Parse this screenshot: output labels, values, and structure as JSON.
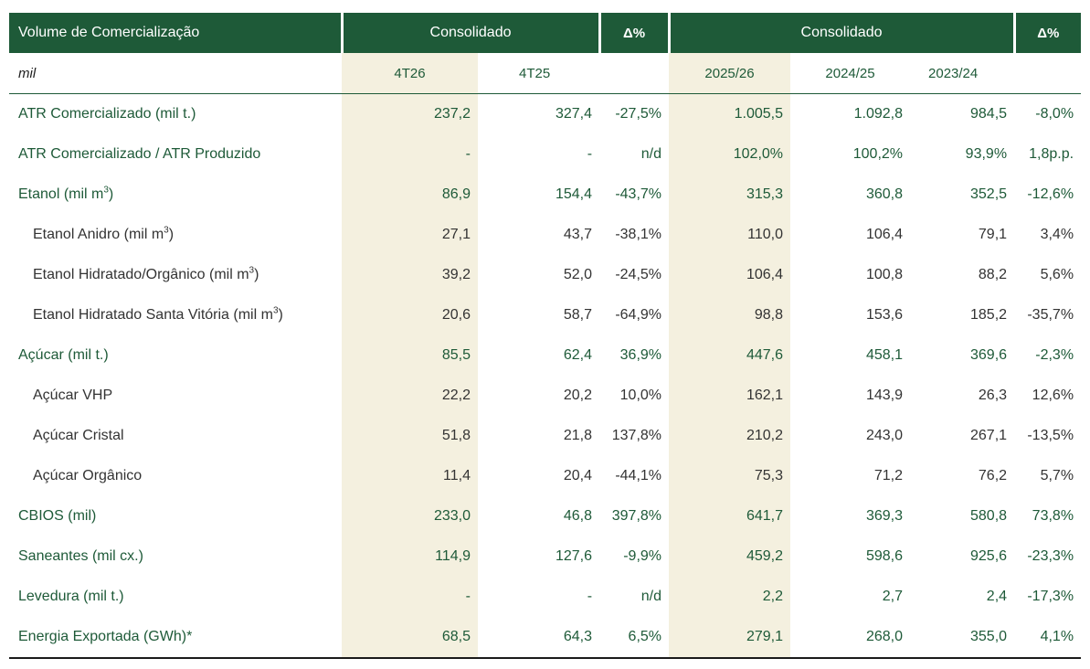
{
  "header": {
    "title": "Volume de Comercialização",
    "group_quarter": "Consolidado",
    "delta_quarter": "Δ%",
    "group_harvest": "Consolidado",
    "delta_harvest": "Δ%"
  },
  "subheader": {
    "unit": "mil",
    "q_current": "4T26",
    "q_previous": "4T25",
    "h_current": "2025/26",
    "h_previous": "2024/25",
    "h_older": "2023/24"
  },
  "rows": [
    {
      "label": "ATR Comercializado (mil t.)",
      "sup": "",
      "suffix": "",
      "type": "main",
      "values": [
        "237,2",
        "327,4",
        "-27,5%",
        "1.005,5",
        "1.092,8",
        "984,5",
        "-8,0%"
      ]
    },
    {
      "label": "ATR Comercializado / ATR Produzido",
      "sup": "",
      "suffix": "",
      "type": "main",
      "values": [
        "-",
        "-",
        "n/d",
        "102,0%",
        "100,2%",
        "93,9%",
        "1,8p.p."
      ]
    },
    {
      "label": "Etanol (mil m",
      "sup": "3",
      "suffix": ")",
      "type": "main",
      "values": [
        "86,9",
        "154,4",
        "-43,7%",
        "315,3",
        "360,8",
        "352,5",
        "-12,6%"
      ]
    },
    {
      "label": "Etanol Anidro (mil m",
      "sup": "3",
      "suffix": ")",
      "type": "sub",
      "values": [
        "27,1",
        "43,7",
        "-38,1%",
        "110,0",
        "106,4",
        "79,1",
        "3,4%"
      ]
    },
    {
      "label": "Etanol Hidratado/Orgânico (mil m",
      "sup": "3",
      "suffix": ")",
      "type": "sub",
      "values": [
        "39,2",
        "52,0",
        "-24,5%",
        "106,4",
        "100,8",
        "88,2",
        "5,6%"
      ]
    },
    {
      "label": "Etanol Hidratado Santa Vitória (mil m",
      "sup": "3",
      "suffix": ")",
      "type": "sub",
      "values": [
        "20,6",
        "58,7",
        "-64,9%",
        "98,8",
        "153,6",
        "185,2",
        "-35,7%"
      ]
    },
    {
      "label": "Açúcar (mil t.)",
      "sup": "",
      "suffix": "",
      "type": "main",
      "values": [
        "85,5",
        "62,4",
        "36,9%",
        "447,6",
        "458,1",
        "369,6",
        "-2,3%"
      ]
    },
    {
      "label": "Açúcar VHP",
      "sup": "",
      "suffix": "",
      "type": "sub",
      "values": [
        "22,2",
        "20,2",
        "10,0%",
        "162,1",
        "143,9",
        "26,3",
        "12,6%"
      ]
    },
    {
      "label": "Açúcar Cristal",
      "sup": "",
      "suffix": "",
      "type": "sub",
      "values": [
        "51,8",
        "21,8",
        "137,8%",
        "210,2",
        "243,0",
        "267,1",
        "-13,5%"
      ]
    },
    {
      "label": "Açúcar Orgânico",
      "sup": "",
      "suffix": "",
      "type": "sub",
      "values": [
        "11,4",
        "20,4",
        "-44,1%",
        "75,3",
        "71,2",
        "76,2",
        "5,7%"
      ]
    },
    {
      "label": "CBIOS (mil)",
      "sup": "",
      "suffix": "",
      "type": "main",
      "values": [
        "233,0",
        "46,8",
        "397,8%",
        "641,7",
        "369,3",
        "580,8",
        "73,8%"
      ]
    },
    {
      "label": "Saneantes (mil cx.)",
      "sup": "",
      "suffix": "",
      "type": "main",
      "values": [
        "114,9",
        "127,6",
        "-9,9%",
        "459,2",
        "598,6",
        "925,6",
        "-23,3%"
      ]
    },
    {
      "label": "Levedura (mil t.)",
      "sup": "",
      "suffix": "",
      "type": "main",
      "values": [
        "-",
        "-",
        "n/d",
        "2,2",
        "2,7",
        "2,4",
        "-17,3%"
      ]
    },
    {
      "label": "Energia Exportada (GWh)*",
      "sup": "",
      "suffix": "",
      "type": "main",
      "values": [
        "68,5",
        "64,3",
        "6,5%",
        "279,1",
        "268,0",
        "355,0",
        "4,1%"
      ]
    }
  ]
}
